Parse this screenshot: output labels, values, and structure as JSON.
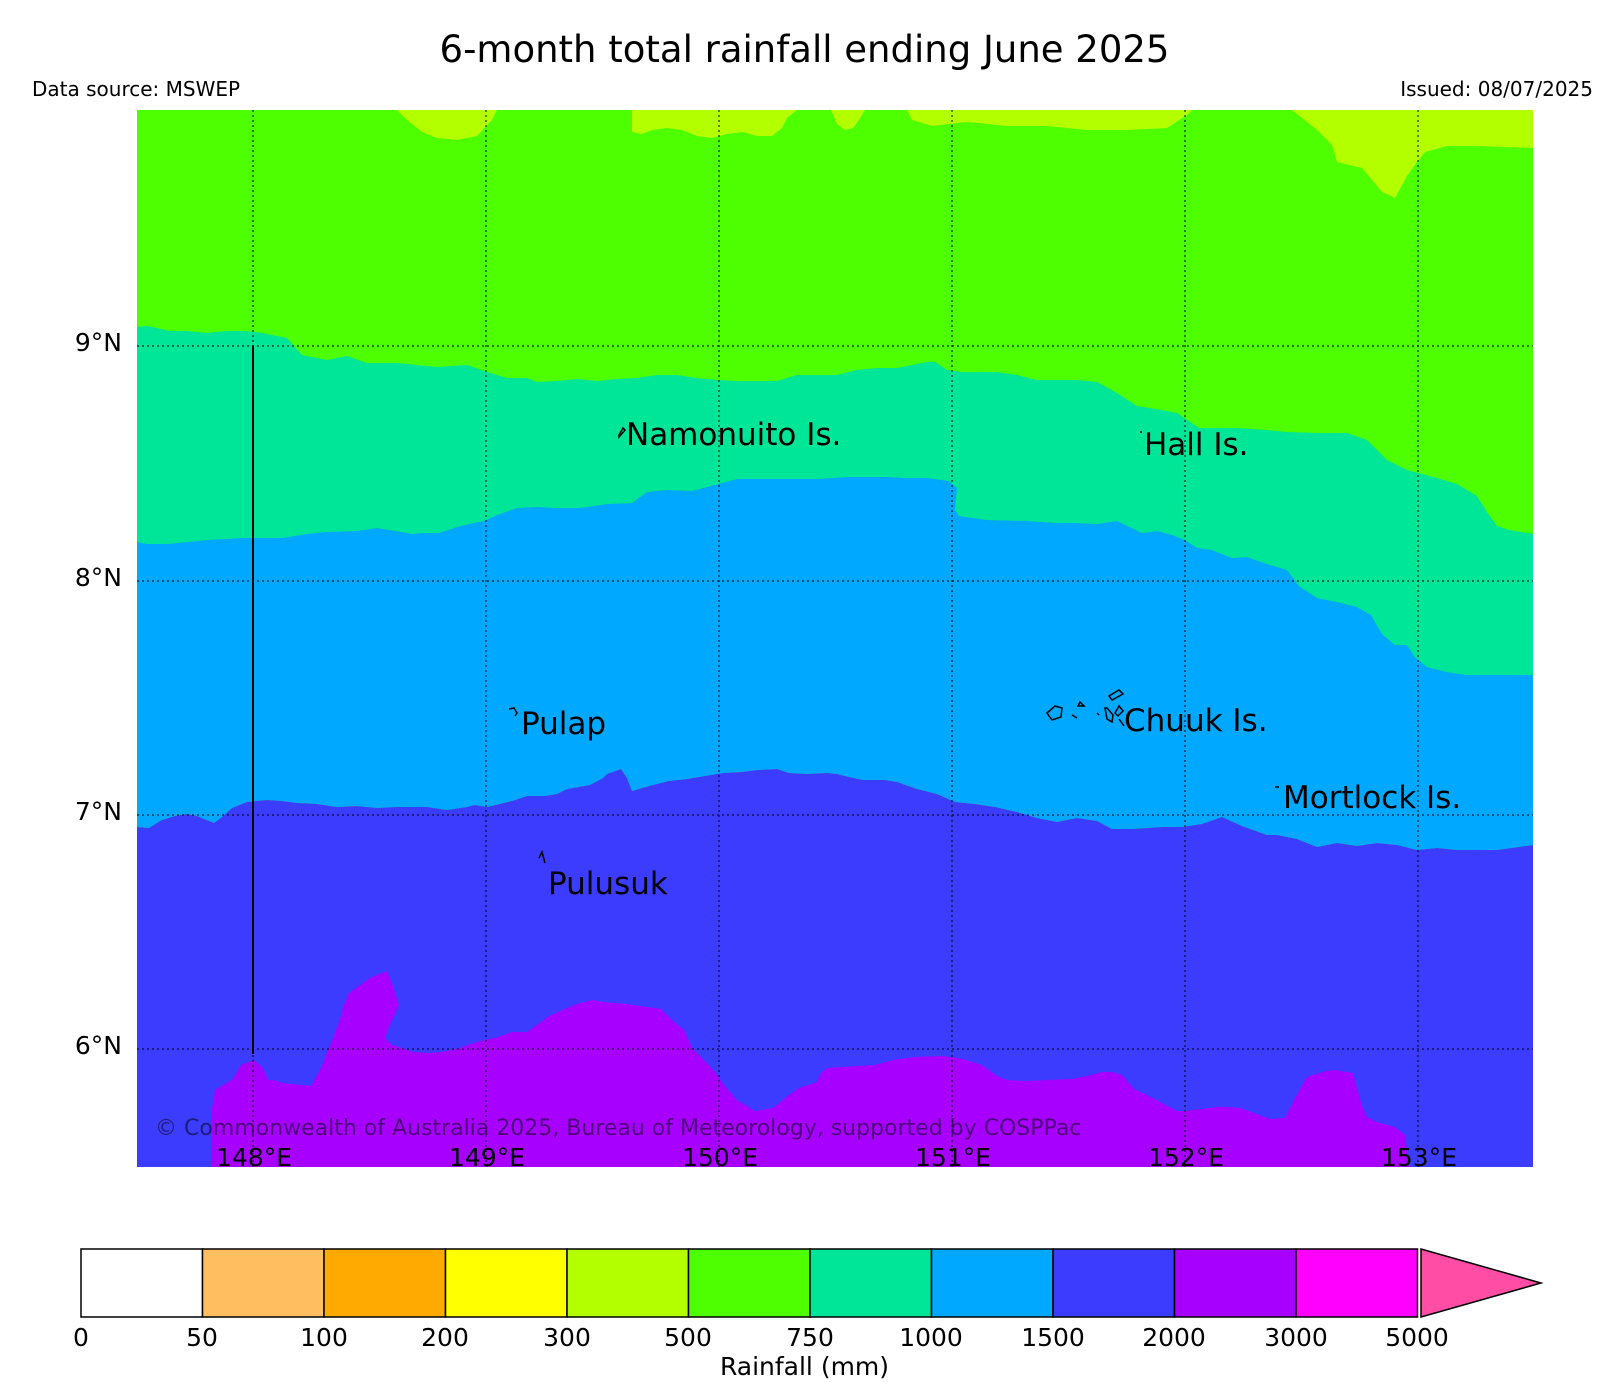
{
  "header": {
    "title": "6-month total rainfall ending June 2025",
    "data_source": "Data source: MSWEP",
    "issued": "Issued: 08/07/2025"
  },
  "map": {
    "colors": {
      "band_300_500": "#B3FF00",
      "band_500_750": "#4DFF00",
      "band_750_1000": "#00E699",
      "band_1000_1500": "#00A8FF",
      "band_1500_2000": "#3C3CFF",
      "band_2000_3000": "#A800FF",
      "grid": "#000000"
    },
    "axes": {
      "latitude_labels": [
        "9°N",
        "8°N",
        "7°N",
        "6°N"
      ],
      "longitude_labels": [
        "148°E",
        "149°E",
        "150°E",
        "151°E",
        "152°E",
        "153°E"
      ]
    },
    "places": {
      "namonuito": "Namonuito Is.",
      "hall": "Hall Is.",
      "pulap": "Pulap",
      "chuuk": "Chuuk Is.",
      "mortlock": "Mortlock Is.",
      "pulusuk": "Pulusuk"
    },
    "copyright": "© Commonwealth of Australia 2025, Bureau of Meteorology, supported by COSPPac"
  },
  "legend": {
    "label": "Rainfall (mm)",
    "ticks": [
      "0",
      "50",
      "100",
      "200",
      "300",
      "500",
      "750",
      "1000",
      "1500",
      "2000",
      "3000",
      "5000"
    ],
    "colors": [
      "#FFFFFF",
      "#FFBF60",
      "#FFAA00",
      "#FFFF00",
      "#B3FF00",
      "#4DFF00",
      "#00E699",
      "#00A8FF",
      "#3C3CFF",
      "#A800FF",
      "#FF00FF",
      "#FF4DA6"
    ]
  }
}
